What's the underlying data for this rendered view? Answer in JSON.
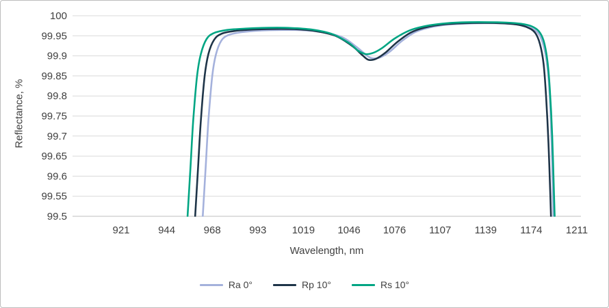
{
  "chart_data": {
    "type": "line",
    "xlabel": "Wavelength, nm",
    "ylabel": "Reflectance, %",
    "ylim": [
      99.5,
      100
    ],
    "y_ticks": [
      99.5,
      99.55,
      99.6,
      99.65,
      99.7,
      99.75,
      99.8,
      99.85,
      99.9,
      99.95,
      100
    ],
    "x_ticks": [
      921,
      944,
      968,
      993,
      1019,
      1046,
      1076,
      1107,
      1139,
      1174,
      1211
    ],
    "grid": "horizontal",
    "legend_position": "bottom",
    "colors": {
      "gridline": "#d9d9d9",
      "axis_line": "#bfbfbf",
      "text": "#404040"
    },
    "series": [
      {
        "name": "Ra 0°",
        "color": "#a4b1dc",
        "points": [
          [
            963,
            99.5
          ],
          [
            964.5,
            99.62
          ],
          [
            966,
            99.74
          ],
          [
            968,
            99.85
          ],
          [
            970,
            99.903
          ],
          [
            973,
            99.938
          ],
          [
            977,
            99.952
          ],
          [
            984,
            99.959
          ],
          [
            994,
            99.963
          ],
          [
            1006,
            99.9645
          ],
          [
            1018,
            99.964
          ],
          [
            1030,
            99.959
          ],
          [
            1042,
            99.9465
          ],
          [
            1051,
            99.922
          ],
          [
            1058,
            99.9
          ],
          [
            1062,
            99.8935
          ],
          [
            1067,
            99.897
          ],
          [
            1073,
            99.911
          ],
          [
            1081,
            99.937
          ],
          [
            1090,
            99.959
          ],
          [
            1099,
            99.97
          ],
          [
            1111,
            99.9775
          ],
          [
            1125,
            99.9805
          ],
          [
            1141,
            99.9815
          ],
          [
            1155,
            99.9805
          ],
          [
            1166,
            99.977
          ],
          [
            1174,
            99.969
          ],
          [
            1180,
            99.955
          ],
          [
            1184,
            99.925
          ],
          [
            1187,
            99.875
          ],
          [
            1189,
            99.8
          ],
          [
            1190.5,
            99.68
          ],
          [
            1191.5,
            99.55
          ],
          [
            1192,
            99.5
          ]
        ]
      },
      {
        "name": "Rp 10°",
        "color": "#1e3448",
        "points": [
          [
            959,
            99.5
          ],
          [
            960.5,
            99.62
          ],
          [
            962,
            99.74
          ],
          [
            964,
            99.85
          ],
          [
            966,
            99.905
          ],
          [
            969,
            99.94
          ],
          [
            973,
            99.955
          ],
          [
            980,
            99.962
          ],
          [
            990,
            99.9655
          ],
          [
            1002,
            99.967
          ],
          [
            1014,
            99.9665
          ],
          [
            1026,
            99.962
          ],
          [
            1038,
            99.95
          ],
          [
            1048,
            99.925
          ],
          [
            1055,
            99.901
          ],
          [
            1059,
            99.89
          ],
          [
            1064,
            99.893
          ],
          [
            1070,
            99.908
          ],
          [
            1078,
            99.935
          ],
          [
            1087,
            99.958
          ],
          [
            1096,
            99.97
          ],
          [
            1108,
            99.978
          ],
          [
            1122,
            99.981
          ],
          [
            1138,
            99.982
          ],
          [
            1152,
            99.981
          ],
          [
            1163,
            99.978
          ],
          [
            1171,
            99.971
          ],
          [
            1177,
            99.958
          ],
          [
            1181,
            99.93
          ],
          [
            1184,
            99.88
          ],
          [
            1186,
            99.8
          ],
          [
            1188,
            99.68
          ],
          [
            1189.5,
            99.55
          ],
          [
            1190,
            99.5
          ]
        ]
      },
      {
        "name": "Rs 10°",
        "color": "#00a583",
        "points": [
          [
            955,
            99.5
          ],
          [
            956.5,
            99.62
          ],
          [
            958,
            99.74
          ],
          [
            960,
            99.85
          ],
          [
            962,
            99.905
          ],
          [
            965,
            99.942
          ],
          [
            969,
            99.957
          ],
          [
            976,
            99.9645
          ],
          [
            986,
            99.968
          ],
          [
            999,
            99.97
          ],
          [
            1012,
            99.9695
          ],
          [
            1024,
            99.9655
          ],
          [
            1036,
            99.9545
          ],
          [
            1046,
            99.932
          ],
          [
            1052,
            99.913
          ],
          [
            1057,
            99.9045
          ],
          [
            1062,
            99.9075
          ],
          [
            1068,
            99.92
          ],
          [
            1076,
            99.943
          ],
          [
            1086,
            99.963
          ],
          [
            1096,
            99.9735
          ],
          [
            1108,
            99.98
          ],
          [
            1122,
            99.9835
          ],
          [
            1140,
            99.984
          ],
          [
            1155,
            99.983
          ],
          [
            1166,
            99.98
          ],
          [
            1174,
            99.974
          ],
          [
            1180,
            99.962
          ],
          [
            1184,
            99.938
          ],
          [
            1187,
            99.89
          ],
          [
            1189,
            99.82
          ],
          [
            1191,
            99.7
          ],
          [
            1192.5,
            99.55
          ],
          [
            1193,
            99.5
          ]
        ]
      }
    ]
  }
}
